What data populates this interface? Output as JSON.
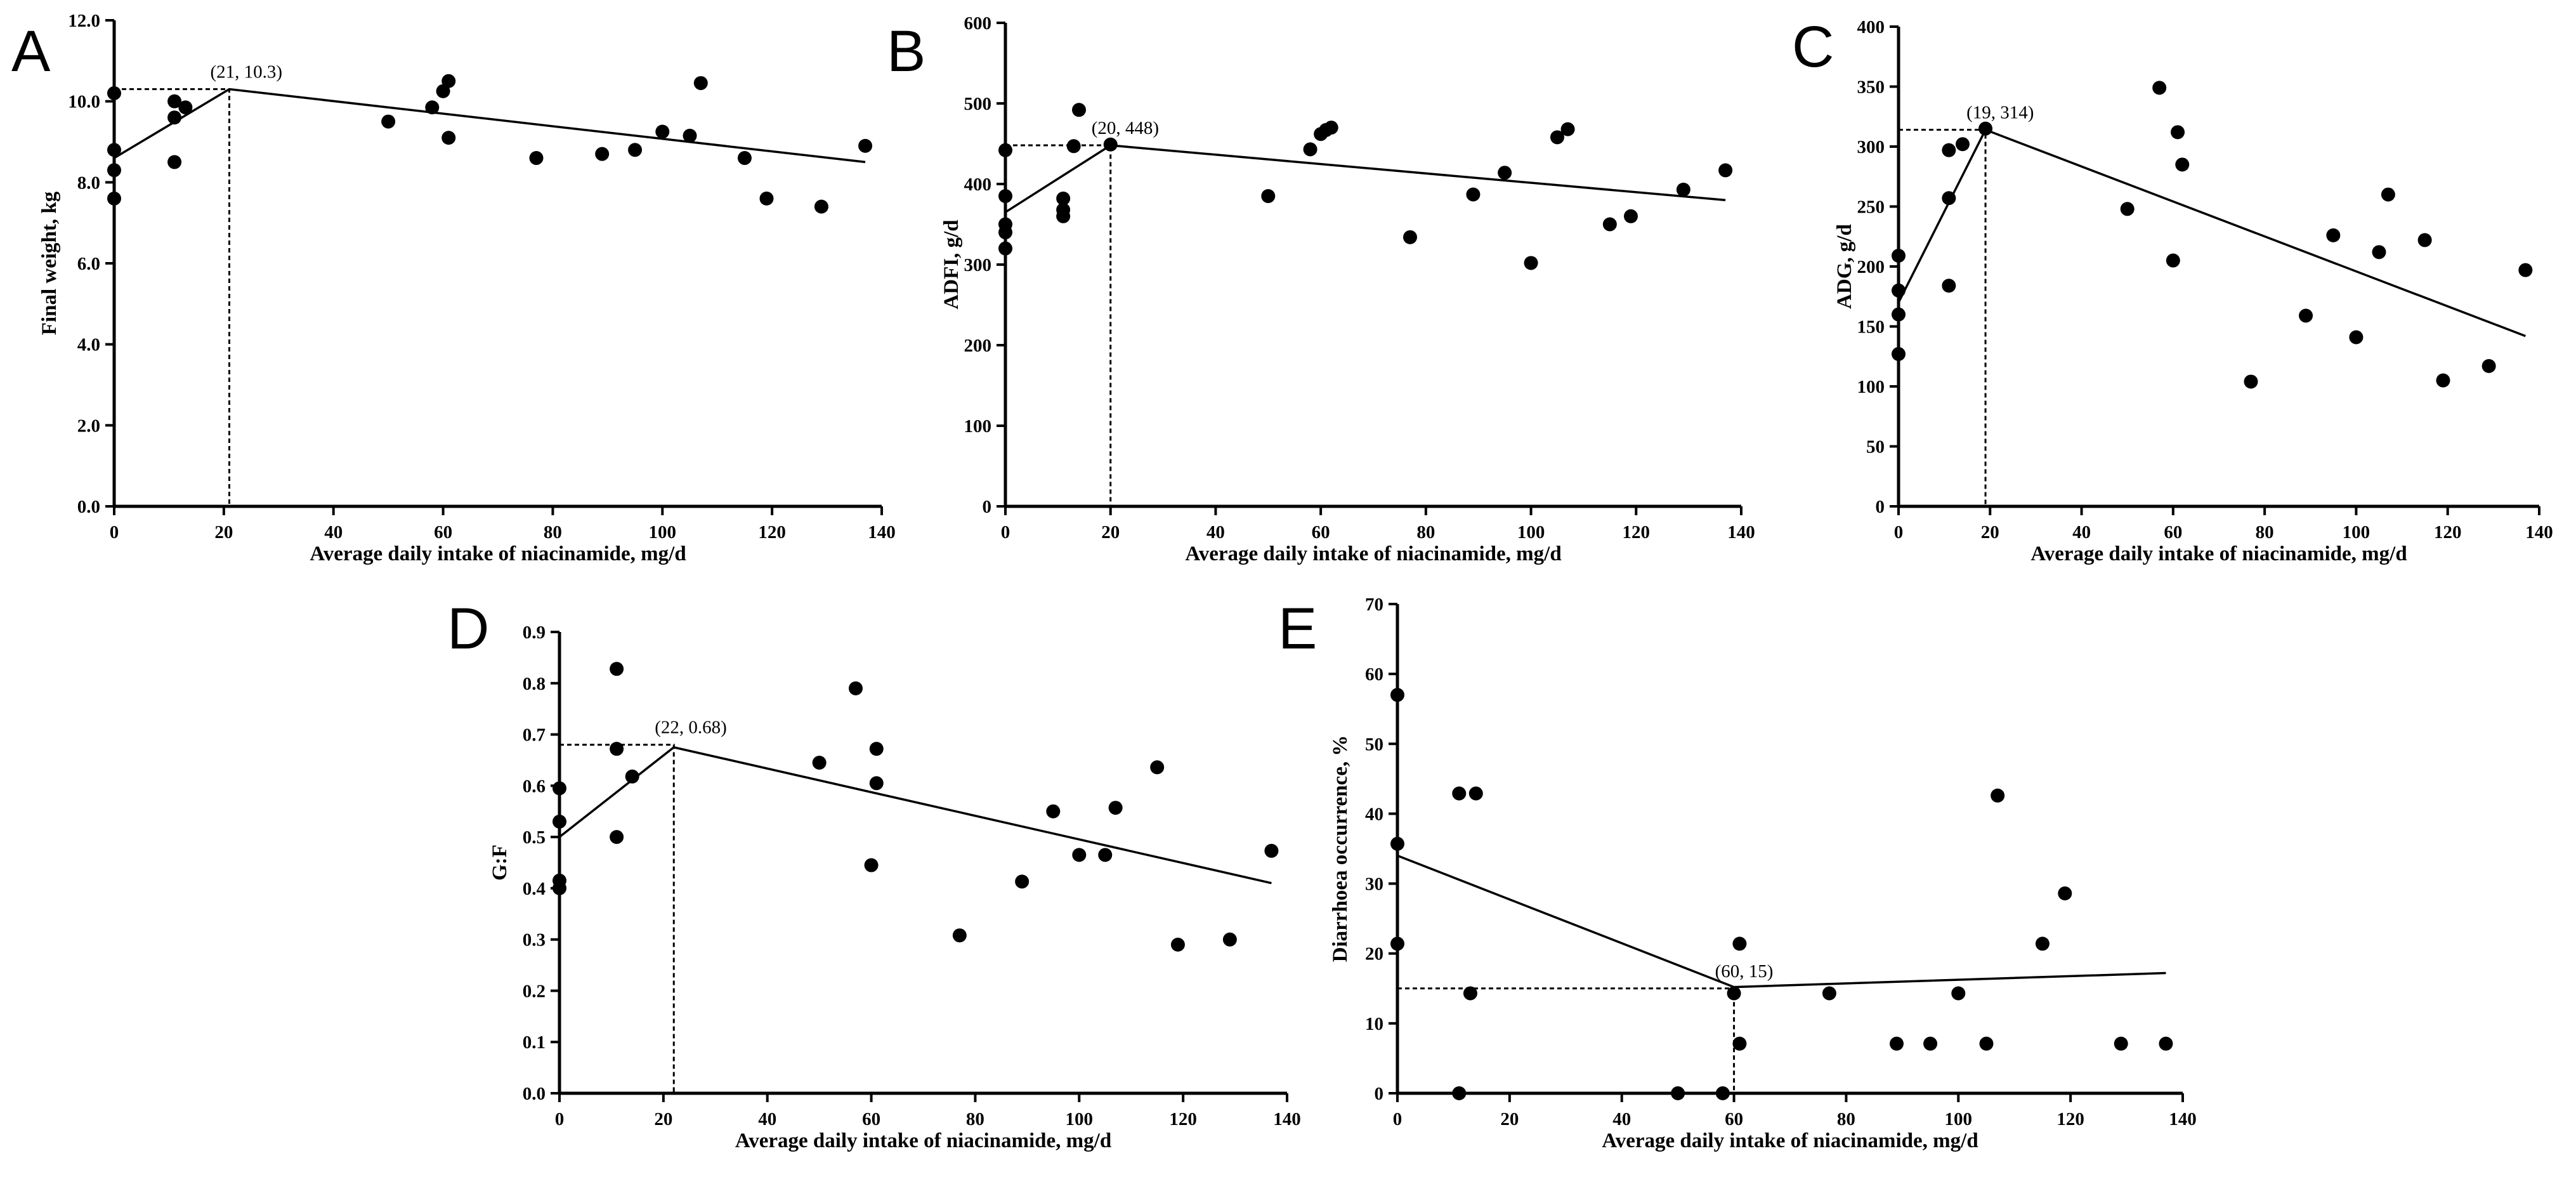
{
  "chart_data": [
    {
      "type": "scatter",
      "panel_label": "A",
      "xlabel": "Average daily intake of niacinamide, mg/d",
      "ylabel": "Final weight, kg",
      "xlim": [
        0,
        140
      ],
      "ylim": [
        0,
        12
      ],
      "x_ticks": [
        "0",
        "20",
        "40",
        "60",
        "80",
        "100",
        "120",
        "140"
      ],
      "y_ticks": [
        "0.0",
        "2.0",
        "4.0",
        "6.0",
        "8.0",
        "10.0",
        "12.0"
      ],
      "breakpoint": [
        21,
        10.3
      ],
      "breakpoint_label": "(21, 10.3)",
      "fit_line": [
        [
          0,
          8.6
        ],
        [
          21,
          10.3
        ],
        [
          137,
          8.5
        ]
      ],
      "points": [
        [
          0,
          10.2
        ],
        [
          0,
          8.8
        ],
        [
          0,
          8.3
        ],
        [
          0,
          7.6
        ],
        [
          11,
          10.0
        ],
        [
          11,
          9.6
        ],
        [
          11,
          8.5
        ],
        [
          13,
          9.85
        ],
        [
          50,
          9.5
        ],
        [
          58,
          9.85
        ],
        [
          60,
          10.25
        ],
        [
          61,
          10.5
        ],
        [
          61,
          9.1
        ],
        [
          77,
          8.6
        ],
        [
          89,
          8.7
        ],
        [
          95,
          8.8
        ],
        [
          100,
          9.25
        ],
        [
          105,
          9.15
        ],
        [
          107,
          10.45
        ],
        [
          115,
          8.6
        ],
        [
          119,
          7.6
        ],
        [
          129,
          7.4
        ],
        [
          137,
          8.9
        ]
      ]
    },
    {
      "type": "scatter",
      "panel_label": "B",
      "xlabel": "Average daily intake of niacinamide, mg/d",
      "ylabel": "ADFI, g/d",
      "xlim": [
        0,
        140
      ],
      "ylim": [
        0,
        600
      ],
      "x_ticks": [
        "0",
        "20",
        "40",
        "60",
        "80",
        "100",
        "120",
        "140"
      ],
      "y_ticks": [
        "0",
        "100",
        "200",
        "300",
        "400",
        "500",
        "600"
      ],
      "breakpoint": [
        20,
        448
      ],
      "breakpoint_label": "(20, 448)",
      "fit_line": [
        [
          0,
          365
        ],
        [
          20,
          448
        ],
        [
          137,
          380
        ]
      ],
      "points": [
        [
          0,
          442
        ],
        [
          0,
          385
        ],
        [
          0,
          350
        ],
        [
          0,
          340
        ],
        [
          0,
          320
        ],
        [
          11,
          382
        ],
        [
          11,
          368
        ],
        [
          11,
          360
        ],
        [
          13,
          447
        ],
        [
          14,
          492
        ],
        [
          20,
          449
        ],
        [
          50,
          385
        ],
        [
          58,
          443
        ],
        [
          60,
          462
        ],
        [
          61,
          467
        ],
        [
          62,
          470
        ],
        [
          77,
          334
        ],
        [
          89,
          387
        ],
        [
          95,
          414
        ],
        [
          100,
          302
        ],
        [
          105,
          458
        ],
        [
          107,
          468
        ],
        [
          115,
          350
        ],
        [
          119,
          360
        ],
        [
          129,
          393
        ],
        [
          137,
          417
        ]
      ]
    },
    {
      "type": "scatter",
      "panel_label": "C",
      "xlabel": "Average daily intake of niacinamide, mg/d",
      "ylabel": "ADG, g/d",
      "xlim": [
        0,
        140
      ],
      "ylim": [
        0,
        400
      ],
      "x_ticks": [
        "0",
        "20",
        "40",
        "60",
        "80",
        "100",
        "120",
        "140"
      ],
      "y_ticks": [
        "0",
        "50",
        "100",
        "150",
        "200",
        "250",
        "300",
        "350",
        "400"
      ],
      "breakpoint": [
        19,
        314
      ],
      "breakpoint_label": "(19, 314)",
      "fit_line": [
        [
          0,
          170
        ],
        [
          19,
          314
        ],
        [
          137,
          142
        ]
      ],
      "points": [
        [
          0,
          209
        ],
        [
          0,
          180
        ],
        [
          0,
          160
        ],
        [
          0,
          127
        ],
        [
          11,
          297
        ],
        [
          11,
          257
        ],
        [
          11,
          184
        ],
        [
          14,
          302
        ],
        [
          19,
          315
        ],
        [
          50,
          248
        ],
        [
          57,
          349
        ],
        [
          60,
          205
        ],
        [
          61,
          312
        ],
        [
          62,
          285
        ],
        [
          77,
          104
        ],
        [
          89,
          159
        ],
        [
          95,
          226
        ],
        [
          100,
          141
        ],
        [
          105,
          212
        ],
        [
          107,
          260
        ],
        [
          115,
          222
        ],
        [
          119,
          105
        ],
        [
          129,
          117
        ],
        [
          137,
          197
        ]
      ]
    },
    {
      "type": "scatter",
      "panel_label": "D",
      "xlabel": "Average daily intake of niacinamide, mg/d",
      "ylabel": "G:F",
      "xlim": [
        0,
        140
      ],
      "ylim": [
        0,
        0.9
      ],
      "x_ticks": [
        "0",
        "20",
        "40",
        "60",
        "80",
        "100",
        "120",
        "140"
      ],
      "y_ticks": [
        "0.0",
        "0.1",
        "0.2",
        "0.3",
        "0.4",
        "0.5",
        "0.6",
        "0.7",
        "0.8",
        "0.9"
      ],
      "breakpoint": [
        22,
        0.68
      ],
      "breakpoint_label": "(22, 0.68)",
      "fit_line": [
        [
          0,
          0.5
        ],
        [
          22,
          0.675
        ],
        [
          137,
          0.41
        ]
      ],
      "points": [
        [
          0,
          0.595
        ],
        [
          0,
          0.53
        ],
        [
          0,
          0.415
        ],
        [
          0,
          0.4
        ],
        [
          11,
          0.828
        ],
        [
          11,
          0.672
        ],
        [
          11,
          0.5
        ],
        [
          14,
          0.618
        ],
        [
          50,
          0.645
        ],
        [
          57,
          0.79
        ],
        [
          60,
          0.445
        ],
        [
          61,
          0.672
        ],
        [
          61,
          0.605
        ],
        [
          77,
          0.308
        ],
        [
          89,
          0.413
        ],
        [
          95,
          0.55
        ],
        [
          100,
          0.465
        ],
        [
          105,
          0.465
        ],
        [
          107,
          0.557
        ],
        [
          115,
          0.636
        ],
        [
          119,
          0.29
        ],
        [
          129,
          0.3
        ],
        [
          137,
          0.473
        ]
      ]
    },
    {
      "type": "scatter",
      "panel_label": "E",
      "xlabel": "Average daily intake of niacinamide, mg/d",
      "ylabel": "Diarrhoea occurrence, %",
      "xlim": [
        0,
        140
      ],
      "ylim": [
        0,
        70
      ],
      "x_ticks": [
        "0",
        "20",
        "40",
        "60",
        "80",
        "100",
        "120",
        "140"
      ],
      "y_ticks": [
        "0",
        "10",
        "20",
        "30",
        "40",
        "50",
        "60",
        "70"
      ],
      "breakpoint": [
        60,
        15
      ],
      "breakpoint_label": "(60, 15)",
      "fit_line": [
        [
          0,
          34
        ],
        [
          60,
          15.2
        ],
        [
          137,
          17.2
        ]
      ],
      "points": [
        [
          0,
          57
        ],
        [
          0,
          35.7
        ],
        [
          0,
          21.4
        ],
        [
          11,
          42.9
        ],
        [
          11,
          0
        ],
        [
          13,
          14.3
        ],
        [
          14,
          42.9
        ],
        [
          50,
          0
        ],
        [
          58,
          0
        ],
        [
          60,
          14.3
        ],
        [
          61,
          21.4
        ],
        [
          61,
          7.1
        ],
        [
          77,
          14.3
        ],
        [
          89,
          7.1
        ],
        [
          95,
          7.1
        ],
        [
          100,
          14.3
        ],
        [
          105,
          7.1
        ],
        [
          107,
          42.6
        ],
        [
          115,
          21.4
        ],
        [
          119,
          28.6
        ],
        [
          129,
          7.1
        ],
        [
          137,
          7.1
        ]
      ]
    }
  ]
}
